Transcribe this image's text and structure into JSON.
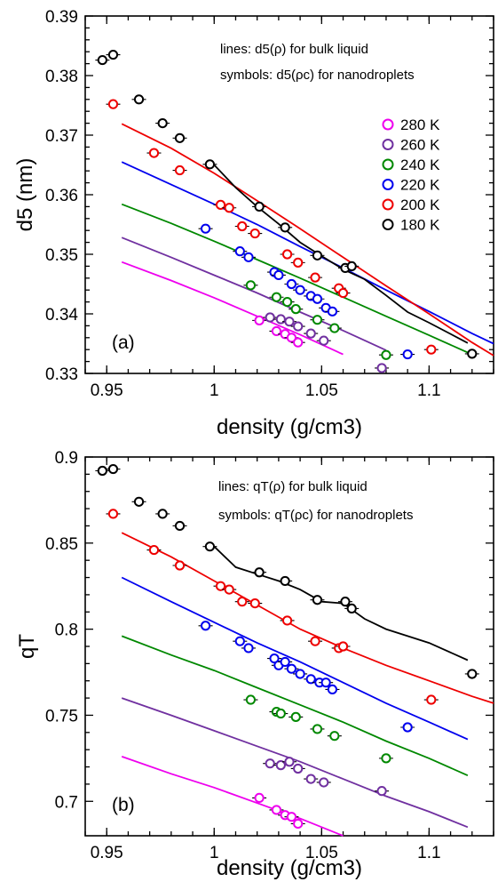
{
  "chart_data": [
    {
      "type": "line",
      "panel_label": "(a)",
      "xlabel": "density (g/cm3)",
      "ylabel": "d5 (nm)",
      "xlim": [
        0.94,
        1.13
      ],
      "ylim": [
        0.33,
        0.39
      ],
      "xticks": [
        0.95,
        1,
        1.05,
        1.1
      ],
      "xtick_labels": [
        "0.95",
        "1",
        "1.05",
        "1.1"
      ],
      "yticks": [
        0.33,
        0.34,
        0.35,
        0.36,
        0.37,
        0.38,
        0.39
      ],
      "ytick_labels": [
        "0.33",
        "0.34",
        "0.35",
        "0.36",
        "0.37",
        "0.38",
        "0.39"
      ],
      "annotations": [
        "lines: d5(ρ) for bulk liquid",
        "symbols: d5(ρc) for nanodroplets"
      ],
      "legend": {
        "position": "right",
        "entries": [
          "280 K",
          "260 K",
          "240 K",
          "220 K",
          "200 K",
          "180 K"
        ]
      },
      "series": [
        {
          "name": "280 K",
          "color": "#ee00ee",
          "line": {
            "x": [
              0.957,
              0.98,
              1.0,
              1.02,
              1.04,
              1.06
            ],
            "y": [
              0.3487,
              0.3456,
              0.3427,
              0.3396,
              0.3365,
              0.3332
            ]
          },
          "points": {
            "x": [
              1.021,
              1.029,
              1.033,
              1.036,
              1.039
            ],
            "y": [
              0.3389,
              0.3371,
              0.3366,
              0.336,
              0.3352
            ]
          }
        },
        {
          "name": "260 K",
          "color": "#7030a0",
          "line": {
            "x": [
              0.957,
              0.98,
              1.0,
              1.02,
              1.04,
              1.06,
              1.08
            ],
            "y": [
              0.3528,
              0.3495,
              0.3465,
              0.3435,
              0.3403,
              0.3372,
              0.3339
            ]
          },
          "points": {
            "x": [
              1.026,
              1.031,
              1.035,
              1.039,
              1.045,
              1.051,
              1.078
            ],
            "y": [
              0.3394,
              0.3391,
              0.3387,
              0.3379,
              0.3367,
              0.3355,
              0.3309
            ]
          }
        },
        {
          "name": "240 K",
          "color": "#008800",
          "line": {
            "x": [
              0.957,
              0.98,
              1.0,
              1.02,
              1.04,
              1.06,
              1.08,
              1.1,
              1.118
            ],
            "y": [
              0.3584,
              0.3552,
              0.3522,
              0.3491,
              0.346,
              0.3428,
              0.3396,
              0.3364,
              0.3335
            ]
          },
          "points": {
            "x": [
              1.017,
              1.029,
              1.034,
              1.038,
              1.048,
              1.056,
              1.08
            ],
            "y": [
              0.3448,
              0.3428,
              0.342,
              0.3408,
              0.339,
              0.3376,
              0.3331
            ]
          }
        },
        {
          "name": "220 K",
          "color": "#0000ee",
          "line": {
            "x": [
              0.957,
              0.98,
              1.0,
              1.02,
              1.04,
              1.06,
              1.08,
              1.1,
              1.12,
              1.13
            ],
            "y": [
              0.3655,
              0.3617,
              0.3584,
              0.355,
              0.3513,
              0.3477,
              0.344,
              0.3404,
              0.3367,
              0.335
            ]
          },
          "points": {
            "x": [
              0.996,
              1.012,
              1.016,
              1.028,
              1.03,
              1.036,
              1.04,
              1.045,
              1.048,
              1.052,
              1.055,
              1.09
            ],
            "y": [
              0.3543,
              0.3505,
              0.3495,
              0.347,
              0.3465,
              0.345,
              0.344,
              0.343,
              0.3425,
              0.341,
              0.3404,
              0.3332
            ]
          }
        },
        {
          "name": "200 K",
          "color": "#ee0000",
          "line": {
            "x": [
              0.957,
              0.98,
              1.0,
              1.02,
              1.04,
              1.06,
              1.08,
              1.1,
              1.12,
              1.13
            ],
            "y": [
              0.3719,
              0.3678,
              0.3636,
              0.359,
              0.3543,
              0.3495,
              0.3447,
              0.34,
              0.3352,
              0.333
            ]
          },
          "points": {
            "x": [
              0.953,
              0.972,
              0.984,
              1.003,
              1.007,
              1.013,
              1.019,
              1.034,
              1.039,
              1.047,
              1.058,
              1.06,
              1.101
            ],
            "y": [
              0.3752,
              0.367,
              0.3641,
              0.3583,
              0.3578,
              0.3547,
              0.3535,
              0.35,
              0.3486,
              0.3461,
              0.3443,
              0.3435,
              0.334
            ]
          }
        },
        {
          "name": "180 K",
          "color": "#000000",
          "line": {
            "x": [
              1.0,
              1.01,
              1.02,
              1.03,
              1.04,
              1.05,
              1.06,
              1.07,
              1.08,
              1.09,
              1.1,
              1.118
            ],
            "y": [
              0.365,
              0.3612,
              0.358,
              0.3551,
              0.352,
              0.3497,
              0.3475,
              0.3458,
              0.3431,
              0.3403,
              0.3385,
              0.3351
            ]
          },
          "points": {
            "x": [
              0.948,
              0.953,
              0.965,
              0.976,
              0.984,
              0.998,
              1.021,
              1.033,
              1.048,
              1.061,
              1.064,
              1.12
            ],
            "y": [
              0.3826,
              0.3835,
              0.376,
              0.372,
              0.3695,
              0.3651,
              0.358,
              0.3545,
              0.3498,
              0.3477,
              0.348,
              0.3333
            ]
          }
        }
      ]
    },
    {
      "type": "line",
      "panel_label": "(b)",
      "xlabel": "density (g/cm3)",
      "ylabel": "qT",
      "xlim": [
        0.94,
        1.13
      ],
      "ylim": [
        0.68,
        0.9
      ],
      "xticks": [
        0.95,
        1,
        1.05,
        1.1
      ],
      "xtick_labels": [
        "0.95",
        "1",
        "1.05",
        "1.1"
      ],
      "yticks": [
        0.7,
        0.75,
        0.8,
        0.85,
        0.9
      ],
      "ytick_labels": [
        "0.7",
        "0.75",
        "0.8",
        "0.85",
        "0.9"
      ],
      "annotations": [
        "lines: qT(ρ) for bulk liquid",
        "symbols: qT(ρc) for nanodroplets"
      ],
      "series": [
        {
          "name": "280 K",
          "color": "#ee00ee",
          "line": {
            "x": [
              0.957,
              0.98,
              1.0,
              1.02,
              1.04,
              1.06
            ],
            "y": [
              0.726,
              0.716,
              0.708,
              0.699,
              0.69,
              0.68
            ]
          },
          "points": {
            "x": [
              1.021,
              1.029,
              1.033,
              1.036,
              1.039
            ],
            "y": [
              0.702,
              0.695,
              0.692,
              0.691,
              0.687
            ]
          }
        },
        {
          "name": "260 K",
          "color": "#7030a0",
          "line": {
            "x": [
              0.957,
              0.98,
              1.0,
              1.02,
              1.04,
              1.06,
              1.08,
              1.1,
              1.118
            ],
            "y": [
              0.76,
              0.75,
              0.741,
              0.732,
              0.723,
              0.713,
              0.703,
              0.694,
              0.685
            ]
          },
          "points": {
            "x": [
              1.026,
              1.031,
              1.035,
              1.039,
              1.045,
              1.051,
              1.078
            ],
            "y": [
              0.722,
              0.721,
              0.723,
              0.719,
              0.713,
              0.711,
              0.706
            ]
          }
        },
        {
          "name": "240 K",
          "color": "#008800",
          "line": {
            "x": [
              0.957,
              0.98,
              1.0,
              1.02,
              1.04,
              1.06,
              1.08,
              1.1,
              1.118
            ],
            "y": [
              0.796,
              0.785,
              0.776,
              0.766,
              0.756,
              0.746,
              0.735,
              0.725,
              0.715
            ]
          },
          "points": {
            "x": [
              1.017,
              1.029,
              1.031,
              1.038,
              1.048,
              1.056,
              1.08
            ],
            "y": [
              0.759,
              0.752,
              0.751,
              0.749,
              0.742,
              0.738,
              0.725
            ]
          }
        },
        {
          "name": "220 K",
          "color": "#0000ee",
          "line": {
            "x": [
              0.957,
              0.98,
              1.0,
              1.02,
              1.04,
              1.06,
              1.08,
              1.1,
              1.118
            ],
            "y": [
              0.83,
              0.816,
              0.804,
              0.792,
              0.781,
              0.769,
              0.757,
              0.746,
              0.736
            ]
          },
          "points": {
            "x": [
              0.996,
              1.012,
              1.016,
              1.028,
              1.03,
              1.033,
              1.036,
              1.04,
              1.045,
              1.049,
              1.052,
              1.055,
              1.09
            ],
            "y": [
              0.802,
              0.793,
              0.789,
              0.783,
              0.779,
              0.781,
              0.777,
              0.774,
              0.771,
              0.769,
              0.769,
              0.765,
              0.743
            ]
          }
        },
        {
          "name": "200 K",
          "color": "#ee0000",
          "line": {
            "x": [
              0.957,
              0.98,
              1.0,
              1.02,
              1.04,
              1.06,
              1.08,
              1.1,
              1.12,
              1.13
            ],
            "y": [
              0.856,
              0.842,
              0.828,
              0.814,
              0.8,
              0.789,
              0.779,
              0.77,
              0.761,
              0.757
            ]
          },
          "points": {
            "x": [
              0.953,
              0.972,
              0.984,
              1.003,
              1.007,
              1.013,
              1.019,
              1.034,
              1.047,
              1.058,
              1.06,
              1.101
            ],
            "y": [
              0.867,
              0.846,
              0.837,
              0.825,
              0.823,
              0.816,
              0.815,
              0.805,
              0.793,
              0.789,
              0.79,
              0.759
            ]
          }
        },
        {
          "name": "180 K",
          "color": "#000000",
          "line": {
            "x": [
              1.0,
              1.01,
              1.02,
              1.03,
              1.04,
              1.05,
              1.06,
              1.07,
              1.08,
              1.09,
              1.1,
              1.118
            ],
            "y": [
              0.848,
              0.836,
              0.832,
              0.828,
              0.823,
              0.816,
              0.815,
              0.806,
              0.8,
              0.796,
              0.792,
              0.782
            ]
          },
          "points": {
            "x": [
              0.948,
              0.953,
              0.965,
              0.976,
              0.984,
              0.998,
              1.021,
              1.033,
              1.048,
              1.061,
              1.064,
              1.12
            ],
            "y": [
              0.892,
              0.893,
              0.874,
              0.867,
              0.86,
              0.848,
              0.833,
              0.828,
              0.817,
              0.816,
              0.812,
              0.774
            ]
          }
        }
      ]
    }
  ]
}
